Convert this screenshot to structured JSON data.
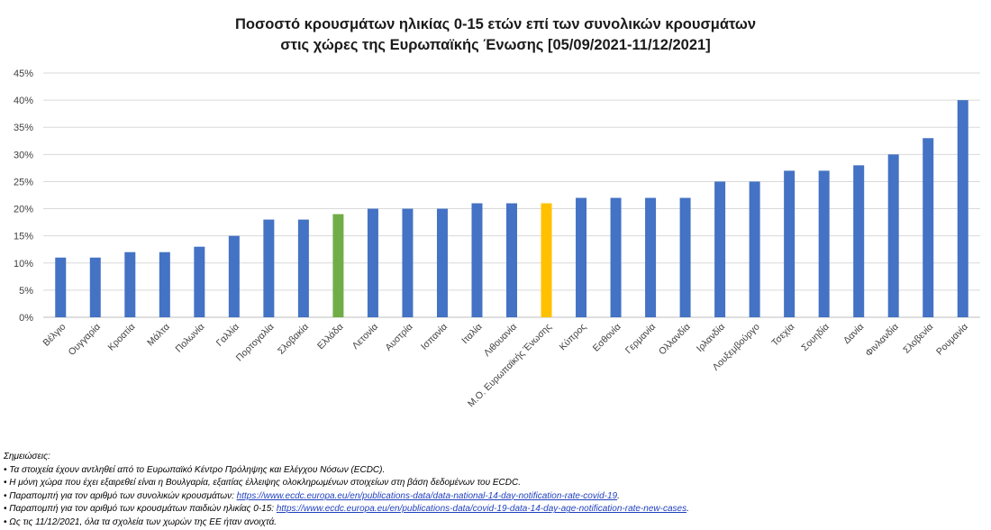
{
  "chart_data": {
    "type": "bar",
    "title": [
      "Ποσοστό κρουσμάτων ηλικίας 0-15 ετών επί των συνολικών κρουσμάτων",
      "στις χώρες της Ευρωπαϊκής Ένωσης [05/09/2021-11/12/2021]"
    ],
    "xlabel": "",
    "ylabel": "",
    "ylim": [
      0,
      45
    ],
    "ytick_labels": [
      "0%",
      "5%",
      "10%",
      "15%",
      "20%",
      "25%",
      "30%",
      "35%",
      "40%",
      "45%"
    ],
    "grid": true,
    "categories": [
      "Βέλγιο",
      "Ουγγαρία",
      "Κροατία",
      "Μάλτα",
      "Πολωνία",
      "Γαλλία",
      "Πορτογαλία",
      "Σλοβακία",
      "Ελλάδα",
      "Λετονία",
      "Αυστρία",
      "Ισπανία",
      "Ιταλία",
      "Λιθουανία",
      "Μ.Ο. Ευρωπαϊκής Ένωσης",
      "Κύπρος",
      "Εσθονία",
      "Γερμανία",
      "Ολλανδία",
      "Ιρλανδία",
      "Λουξεμβούργο",
      "Τσεχία",
      "Σουηδία",
      "Δανία",
      "Φινλανδία",
      "Σλοβενία",
      "Ρουμανία"
    ],
    "values": [
      11,
      11,
      12,
      12,
      13,
      15,
      18,
      18,
      19,
      20,
      20,
      20,
      21,
      21,
      21,
      22,
      22,
      22,
      22,
      25,
      25,
      27,
      27,
      28,
      30,
      33,
      40
    ],
    "bar_colors": {
      "default": "#4472c4",
      "Ελλάδα": "#70ad47",
      "Μ.Ο. Ευρωπαϊκής Ένωσης": "#ffc000"
    }
  },
  "notes": {
    "heading": "Σημειώσεις:",
    "items": [
      {
        "text": "Τα στοιχεία έχουν αντληθεί από το Ευρωπαϊκό Κέντρο Πρόληψης και Ελέγχου Νόσων (ECDC).",
        "link": "",
        "suffix": ""
      },
      {
        "text": "Η μόνη χώρα που έχει εξαιρεθεί είναι η Βουλγαρία, εξαιτίας έλλειψης ολοκληρωμένων στοιχείων στη βάση δεδομένων του ECDC.",
        "link": "",
        "suffix": ""
      },
      {
        "text": "Παραπομπή για τον αριθμό των συνολικών κρουσμάτων: ",
        "link": "https://www.ecdc.europa.eu/en/publications-data/data-national-14-day-notification-rate-covid-19",
        "suffix": "."
      },
      {
        "text": "Παραπομπή για τον αριθμό των κρουσμάτων παιδιών ηλικίας 0-15: ",
        "link": "https://www.ecdc.europa.eu/en/publications-data/covid-19-data-14-day-age-notification-rate-new-cases",
        "suffix": "."
      },
      {
        "text": "Ως τις 11/12/2021, όλα τα σχολεία των χωρών της ΕΕ ήταν ανοιχτά.",
        "link": "",
        "suffix": ""
      }
    ],
    "bullet": "•"
  }
}
